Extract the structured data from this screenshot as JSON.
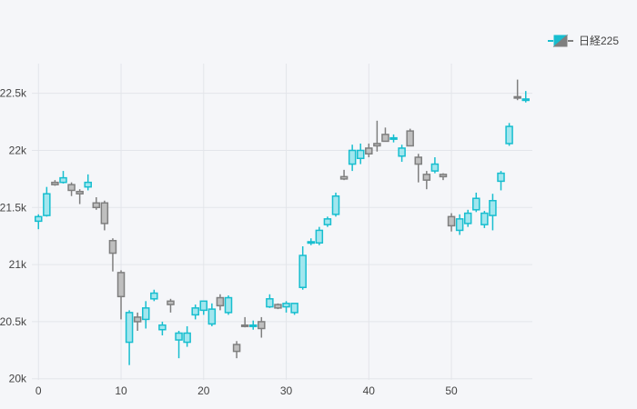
{
  "chart_data": {
    "type": "candlestick",
    "series": [
      {
        "name": "日経225",
        "increasing_color": "#17becf",
        "decreasing_color": "#7f7f7f",
        "x": [
          0,
          1,
          2,
          3,
          4,
          5,
          6,
          7,
          8,
          9,
          10,
          11,
          12,
          13,
          14,
          15,
          16,
          17,
          18,
          19,
          20,
          21,
          22,
          23,
          24,
          25,
          26,
          27,
          28,
          29,
          30,
          31,
          32,
          33,
          34,
          35,
          36,
          37,
          38,
          39,
          40,
          41,
          42,
          43,
          44,
          45,
          46,
          47,
          48,
          49,
          50,
          51,
          52,
          53,
          54,
          55,
          56,
          57,
          58,
          59
        ],
        "open": [
          21380,
          21430,
          21720,
          21720,
          21700,
          21640,
          21680,
          21540,
          21540,
          21210,
          20930,
          20320,
          20540,
          20520,
          20700,
          20430,
          20680,
          20340,
          20320,
          20560,
          20600,
          20480,
          20710,
          20580,
          20300,
          20470,
          20460,
          20500,
          20630,
          20650,
          20630,
          20580,
          20800,
          21190,
          21190,
          21350,
          21440,
          21770,
          21880,
          21930,
          22020,
          22060,
          22140,
          22100,
          21950,
          22170,
          21940,
          21790,
          21820,
          21790,
          21420,
          21300,
          21360,
          21480,
          21350,
          21430,
          21730,
          22060,
          22470,
          22440
        ],
        "high": [
          21440,
          21680,
          21740,
          21820,
          21720,
          21660,
          21790,
          21590,
          21560,
          21230,
          20950,
          20600,
          20580,
          20680,
          20780,
          20500,
          20700,
          20420,
          20460,
          20650,
          20680,
          20660,
          20740,
          20730,
          20330,
          20540,
          20510,
          20540,
          20740,
          20660,
          20680,
          20660,
          21160,
          21230,
          21330,
          21420,
          21630,
          21830,
          22050,
          22060,
          22060,
          22260,
          22200,
          22140,
          22050,
          22190,
          21970,
          21820,
          21940,
          21800,
          21450,
          21440,
          21480,
          21630,
          21470,
          21620,
          21820,
          22240,
          22620,
          22520
        ],
        "low": [
          21310,
          21420,
          21690,
          21710,
          21600,
          21530,
          21650,
          21480,
          21300,
          20940,
          20520,
          20120,
          20420,
          20440,
          20680,
          20380,
          20580,
          20180,
          20280,
          20520,
          20560,
          20460,
          20600,
          20560,
          20180,
          20450,
          20430,
          20360,
          20620,
          20610,
          20580,
          20560,
          20780,
          21170,
          21170,
          21330,
          21420,
          21740,
          21820,
          21880,
          21940,
          21990,
          22080,
          22070,
          21900,
          22050,
          21720,
          21660,
          21800,
          21740,
          21290,
          21260,
          21330,
          21460,
          21320,
          21300,
          21650,
          22040,
          22440,
          22420
        ],
        "close": [
          21420,
          21620,
          21700,
          21760,
          21650,
          21620,
          21720,
          21500,
          21360,
          21100,
          20720,
          20580,
          20500,
          20620,
          20750,
          20470,
          20650,
          20400,
          20400,
          20620,
          20680,
          20610,
          20640,
          20710,
          20240,
          20460,
          20470,
          20440,
          20700,
          20620,
          20660,
          20660,
          21080,
          21200,
          21300,
          21400,
          21600,
          21750,
          22000,
          22000,
          21970,
          22040,
          22080,
          22110,
          22020,
          22040,
          21880,
          21740,
          21880,
          21770,
          21340,
          21400,
          21450,
          21580,
          21450,
          21560,
          21800,
          22210,
          22460,
          22450
        ]
      }
    ],
    "xlim": [
      -0.8,
      59.8
    ],
    "ylim": [
      19990,
      22760
    ],
    "xticks": [
      0,
      10,
      20,
      30,
      40,
      50
    ],
    "xtick_labels": [
      "0",
      "10",
      "20",
      "30",
      "40",
      "50"
    ],
    "yticks": [
      20000,
      20500,
      21000,
      21500,
      22000,
      22500
    ],
    "ytick_labels": [
      "20k",
      "20.5k",
      "21k",
      "21.5k",
      "22k",
      "22.5k"
    ],
    "grid": true,
    "legend": "top-right"
  }
}
